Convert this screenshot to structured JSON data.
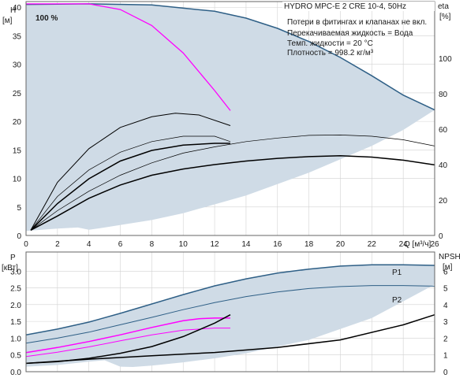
{
  "colors": {
    "envelope_fill": "#cfdbe6",
    "envelope_edge": "#2e5f86",
    "curve_black": "#000000",
    "curve_magenta": "#ff00ff",
    "grid": "#d2d2d2",
    "frame": "#666666"
  },
  "chart_data": [
    {
      "type": "line",
      "panel": "head-efficiency",
      "ylabel_left": "H",
      "ylabel_left_unit": "[м]",
      "ylabel_right": "eta",
      "ylabel_right_unit": "[%]",
      "xlabel": "Q [м³/ч]",
      "xlim": [
        0,
        26
      ],
      "ylim_left": [
        0,
        41
      ],
      "ylim_right": [
        0,
        132
      ],
      "x_ticks": [
        0,
        2,
        4,
        6,
        8,
        10,
        12,
        14,
        16,
        18,
        20,
        22,
        24,
        26
      ],
      "y_ticks_left": [
        0,
        5,
        10,
        15,
        20,
        25,
        30,
        35,
        40
      ],
      "y_ticks_right": [
        0,
        20,
        40,
        60,
        80,
        100
      ],
      "speed_label": "100 %",
      "info_lines": [
        "HYDRO MPC-E 2 CRE 10-4, 50Hz",
        "Потери в фитингах и клапанах не вкл.",
        "Перекачиваемая жидкость = Вода",
        "Темп. жидкости = 20 °C",
        "Плотность = 998.2 кг/м³"
      ],
      "envelope_qh": {
        "upper": [
          [
            0,
            40.5
          ],
          [
            4,
            40.6
          ],
          [
            8,
            40.4
          ],
          [
            12,
            39.3
          ],
          [
            14,
            38.1
          ],
          [
            16,
            36.3
          ],
          [
            18,
            34.0
          ],
          [
            20,
            31.2
          ],
          [
            22,
            28.0
          ],
          [
            24,
            24.6
          ],
          [
            26,
            22.0
          ]
        ],
        "lower": [
          [
            0,
            0.8
          ],
          [
            2,
            1.2
          ],
          [
            3.3,
            1.4
          ],
          [
            4,
            1.0
          ],
          [
            5,
            1.4
          ],
          [
            8,
            2.7
          ],
          [
            10,
            3.9
          ],
          [
            14,
            7.0
          ],
          [
            18,
            11.0
          ],
          [
            22,
            15.7
          ],
          [
            24,
            18.5
          ],
          [
            26,
            22.0
          ]
        ]
      },
      "series": [
        {
          "color": "#ff00ff",
          "axis": "left",
          "points": [
            [
              0,
              40.6
            ],
            [
              4,
              40.6
            ],
            [
              6,
              39.6
            ],
            [
              8,
              36.8
            ],
            [
              10,
              32.0
            ],
            [
              12,
              25.4
            ],
            [
              13,
              21.9
            ]
          ]
        },
        {
          "color": "#000000",
          "axis": "right",
          "width": 1.0,
          "points": [
            [
              0.3,
              3
            ],
            [
              2,
              30
            ],
            [
              4,
              49
            ],
            [
              6,
              61
            ],
            [
              8,
              67
            ],
            [
              9.5,
              69
            ],
            [
              11,
              68
            ],
            [
              13,
              62
            ]
          ]
        },
        {
          "color": "#000000",
          "axis": "right",
          "width": 0.7,
          "points": [
            [
              0.3,
              3
            ],
            [
              2,
              22
            ],
            [
              4,
              37
            ],
            [
              6,
              47
            ],
            [
              8,
              53
            ],
            [
              10,
              56
            ],
            [
              12,
              56
            ],
            [
              13,
              53
            ]
          ]
        },
        {
          "color": "#000000",
          "axis": "right",
          "width": 1.5,
          "points": [
            [
              0.3,
              3
            ],
            [
              2,
              18
            ],
            [
              4,
              32
            ],
            [
              6,
              42
            ],
            [
              8,
              48
            ],
            [
              10,
              51
            ],
            [
              12,
              52
            ],
            [
              13,
              52
            ]
          ]
        },
        {
          "color": "#000000",
          "axis": "right",
          "width": 0.7,
          "points": [
            [
              0.3,
              3
            ],
            [
              2,
              14
            ],
            [
              4,
              25
            ],
            [
              6,
              34
            ],
            [
              8,
              41
            ],
            [
              10,
              46.5
            ],
            [
              12,
              50
            ],
            [
              14,
              53
            ],
            [
              16,
              55
            ],
            [
              18,
              56.5
            ],
            [
              20,
              56.7
            ],
            [
              22,
              56
            ],
            [
              24,
              54
            ],
            [
              26,
              50.5
            ]
          ]
        },
        {
          "color": "#000000",
          "axis": "right",
          "width": 1.5,
          "points": [
            [
              0.3,
              3
            ],
            [
              2,
              11
            ],
            [
              4,
              21
            ],
            [
              6,
              28.5
            ],
            [
              8,
              34
            ],
            [
              10,
              37.5
            ],
            [
              12,
              40
            ],
            [
              14,
              42
            ],
            [
              16,
              43.5
            ],
            [
              18,
              44.5
            ],
            [
              20,
              45
            ],
            [
              22,
              44.2
            ],
            [
              24,
              42.5
            ],
            [
              26,
              39.8
            ]
          ]
        }
      ]
    },
    {
      "type": "line",
      "panel": "power-npsh",
      "ylabel_left": "P",
      "ylabel_left_unit": "[кВт]",
      "ylabel_right": "NPSH",
      "ylabel_right_unit": "[м]",
      "xlim": [
        0,
        26
      ],
      "ylim_left": [
        0,
        3.57
      ],
      "ylim_right": [
        0,
        7.15
      ],
      "y_ticks_left": [
        0.0,
        0.5,
        1.0,
        1.5,
        2.0,
        2.5,
        3.0
      ],
      "y_ticks_right": [
        0,
        1,
        2,
        3,
        4,
        5,
        6
      ],
      "envelope_p": {
        "upper": [
          [
            0,
            1.1
          ],
          [
            2,
            1.27
          ],
          [
            4,
            1.48
          ],
          [
            6,
            1.74
          ],
          [
            8,
            2.02
          ],
          [
            10,
            2.3
          ],
          [
            12,
            2.56
          ],
          [
            14,
            2.77
          ],
          [
            16,
            2.94
          ],
          [
            18,
            3.06
          ],
          [
            20,
            3.15
          ],
          [
            22,
            3.19
          ],
          [
            24,
            3.19
          ],
          [
            26,
            3.17
          ]
        ],
        "lower": [
          [
            0,
            0.15
          ],
          [
            2,
            0.2
          ],
          [
            4,
            0.3
          ],
          [
            5,
            0.34
          ],
          [
            6,
            0.15
          ],
          [
            6.8,
            0.14
          ],
          [
            8,
            0.18
          ],
          [
            10,
            0.28
          ],
          [
            12,
            0.4
          ],
          [
            14,
            0.55
          ],
          [
            18,
            0.95
          ],
          [
            22,
            1.6
          ],
          [
            24,
            2.1
          ],
          [
            26,
            2.6
          ]
        ]
      },
      "series": [
        {
          "name": "P1",
          "color": "#2e5f86",
          "axis": "left",
          "width": 1.5,
          "points": [
            [
              0,
              1.1
            ],
            [
              2,
              1.27
            ],
            [
              4,
              1.48
            ],
            [
              6,
              1.74
            ],
            [
              8,
              2.02
            ],
            [
              10,
              2.3
            ],
            [
              12,
              2.56
            ],
            [
              14,
              2.77
            ],
            [
              16,
              2.94
            ],
            [
              18,
              3.06
            ],
            [
              20,
              3.15
            ],
            [
              22,
              3.19
            ],
            [
              24,
              3.19
            ],
            [
              26,
              3.17
            ]
          ]
        },
        {
          "name": "P2",
          "color": "#2e5f86",
          "axis": "left",
          "width": 1.0,
          "points": [
            [
              0,
              0.85
            ],
            [
              2,
              1.0
            ],
            [
              4,
              1.18
            ],
            [
              6,
              1.4
            ],
            [
              8,
              1.62
            ],
            [
              10,
              1.85
            ],
            [
              12,
              2.06
            ],
            [
              14,
              2.24
            ],
            [
              16,
              2.38
            ],
            [
              18,
              2.48
            ],
            [
              20,
              2.54
            ],
            [
              22,
              2.57
            ],
            [
              24,
              2.57
            ],
            [
              26,
              2.55
            ]
          ]
        },
        {
          "color": "#ff00ff",
          "axis": "left",
          "width": 1.5,
          "points": [
            [
              0,
              0.57
            ],
            [
              2,
              0.72
            ],
            [
              4,
              0.9
            ],
            [
              6,
              1.1
            ],
            [
              8,
              1.32
            ],
            [
              10,
              1.52
            ],
            [
              11,
              1.58
            ],
            [
              12,
              1.6
            ],
            [
              13,
              1.6
            ]
          ]
        },
        {
          "color": "#ff00ff",
          "axis": "left",
          "width": 1.0,
          "points": [
            [
              0,
              0.45
            ],
            [
              2,
              0.58
            ],
            [
              4,
              0.74
            ],
            [
              6,
              0.92
            ],
            [
              8,
              1.1
            ],
            [
              10,
              1.24
            ],
            [
              12,
              1.3
            ],
            [
              13,
              1.3
            ]
          ]
        },
        {
          "color": "#000000",
          "axis": "right",
          "width": 1.5,
          "points": [
            [
              0,
              0.5
            ],
            [
              2,
              0.6
            ],
            [
              4,
              0.8
            ],
            [
              6,
              1.1
            ],
            [
              8,
              1.5
            ],
            [
              10,
              2.1
            ],
            [
              12,
              2.9
            ],
            [
              13,
              3.4
            ]
          ]
        },
        {
          "color": "#000000",
          "axis": "right",
          "width": 1.5,
          "points": [
            [
              0,
              0.5
            ],
            [
              4,
              0.75
            ],
            [
              8,
              0.95
            ],
            [
              12,
              1.15
            ],
            [
              16,
              1.45
            ],
            [
              20,
              1.9
            ],
            [
              24,
              2.8
            ],
            [
              26,
              3.4
            ]
          ]
        }
      ]
    }
  ]
}
